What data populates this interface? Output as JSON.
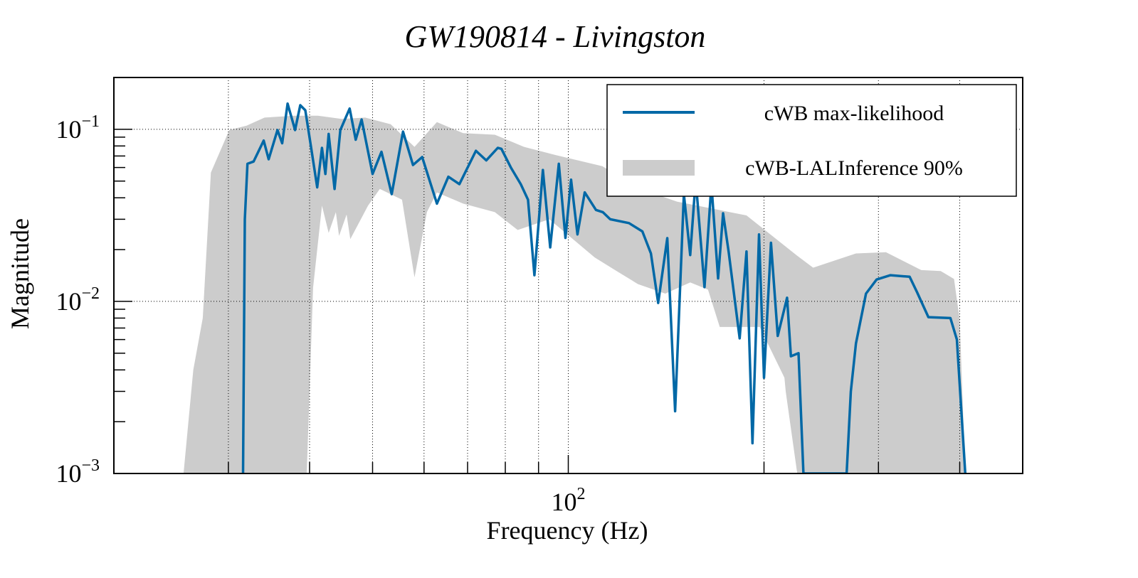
{
  "chart_data": {
    "type": "line",
    "title": "GW190814 - Livingston",
    "xlabel": "Frequency (Hz)",
    "ylabel": "Magnitude",
    "xscale": "log",
    "yscale": "log",
    "xlim": [
      20,
      500
    ],
    "ylim": [
      0.001,
      0.2
    ],
    "grid": true,
    "x_gridlines": [
      30,
      40,
      50,
      60,
      70,
      80,
      90,
      100,
      200,
      300,
      400
    ],
    "y_gridlines": [
      0.1,
      0.01
    ],
    "x_ticks": [
      {
        "value": 100,
        "base": "10",
        "exp": "2"
      }
    ],
    "y_ticks": [
      {
        "value": 0.1,
        "base": "10",
        "exp": "−1"
      },
      {
        "value": 0.01,
        "base": "10",
        "exp": "−2"
      },
      {
        "value": 0.001,
        "base": "10",
        "exp": "−3"
      }
    ],
    "legend": {
      "position": "top-right",
      "entries": [
        {
          "label": "cWB max-likelihood",
          "kind": "line"
        },
        {
          "label": "cWB-LALInference 90%",
          "kind": "band"
        }
      ]
    },
    "colors": {
      "line": "#0068A6",
      "band": "#CCCCCC"
    },
    "series": [
      {
        "name": "cWB max-likelihood",
        "kind": "line",
        "x": [
          31.6,
          31.8,
          32.1,
          32.8,
          34.0,
          34.6,
          35.7,
          36.3,
          37.0,
          38.0,
          38.7,
          39.4,
          40.2,
          41.1,
          41.8,
          42.3,
          42.8,
          43.7,
          44.6,
          46.1,
          47.1,
          48.1,
          50.0,
          51.6,
          53.5,
          55.7,
          57.7,
          59.6,
          62.8,
          65.4,
          68.0,
          72.1,
          74.8,
          77.9,
          78.9,
          81.6,
          84.5,
          86.7,
          88.7,
          91.4,
          93.8,
          96.7,
          99.0,
          101,
          103.3,
          106,
          110.3,
          113,
          116,
          124,
          130,
          134,
          137.5,
          142,
          146,
          150.6,
          154,
          157,
          162,
          166,
          170,
          173,
          176.5,
          183.5,
          188,
          192,
          196.5,
          200,
          205,
          210,
          217,
          220,
          226,
          230,
          268,
          272,
          277,
          287,
          298,
          313,
          335,
          344,
          358,
          387,
          396,
          408
        ],
        "y": [
          0.001,
          0.03,
          0.063,
          0.065,
          0.086,
          0.067,
          0.099,
          0.083,
          0.141,
          0.099,
          0.138,
          0.129,
          0.079,
          0.046,
          0.078,
          0.055,
          0.094,
          0.045,
          0.099,
          0.132,
          0.087,
          0.114,
          0.055,
          0.074,
          0.042,
          0.097,
          0.062,
          0.069,
          0.037,
          0.053,
          0.048,
          0.075,
          0.066,
          0.078,
          0.077,
          0.06,
          0.048,
          0.039,
          0.0142,
          0.058,
          0.0206,
          0.063,
          0.0234,
          0.051,
          0.0245,
          0.043,
          0.034,
          0.033,
          0.03,
          0.0285,
          0.0255,
          0.019,
          0.0098,
          0.0233,
          0.0023,
          0.042,
          0.0186,
          0.051,
          0.0121,
          0.048,
          0.0136,
          0.0325,
          0.0193,
          0.0061,
          0.0195,
          0.0015,
          0.0245,
          0.0036,
          0.0219,
          0.0063,
          0.0105,
          0.0048,
          0.005,
          0.001,
          0.001,
          0.003,
          0.0057,
          0.0111,
          0.0134,
          0.0142,
          0.0139,
          0.0113,
          0.0081,
          0.008,
          0.006,
          0.001
        ]
      },
      {
        "name": "cWB-LALInference 90%",
        "kind": "band",
        "upper": {
          "x": [
            25.6,
            26.5,
            27.4,
            28.2,
            30.1,
            32.0,
            34.1,
            37.9,
            41.2,
            44.8,
            48.7,
            53.3,
            58.0,
            62.8,
            68.9,
            77.1,
            85.5,
            95.4,
            112.8,
            129,
            147,
            188,
            225,
            238,
            277,
            308,
            349,
            374,
            392,
            400,
            408
          ],
          "y": [
            0.001,
            0.004,
            0.008,
            0.056,
            0.099,
            0.105,
            0.117,
            0.12,
            0.12,
            0.115,
            0.117,
            0.107,
            0.079,
            0.11,
            0.095,
            0.093,
            0.079,
            0.071,
            0.061,
            0.045,
            0.038,
            0.0316,
            0.0184,
            0.0157,
            0.019,
            0.0193,
            0.0152,
            0.015,
            0.0135,
            0.0078,
            0.001
          ]
        },
        "lower": {
          "x": [
            25.6,
            39.6,
            40.5,
            41.8,
            42.8,
            43.9,
            44.4,
            45.6,
            46.2,
            49.2,
            51.3,
            55.5,
            58.0,
            60.6,
            62.8,
            68.9,
            77.1,
            83.6,
            93.5,
            109.8,
            118,
            128,
            141,
            154,
            164,
            171,
            197,
            215,
            216,
            225,
            408
          ],
          "y": [
            0.001,
            0.001,
            0.012,
            0.036,
            0.025,
            0.033,
            0.024,
            0.032,
            0.023,
            0.036,
            0.045,
            0.039,
            0.0138,
            0.033,
            0.043,
            0.037,
            0.033,
            0.026,
            0.03,
            0.018,
            0.0152,
            0.0126,
            0.0111,
            0.0129,
            0.0117,
            0.0071,
            0.0071,
            0.0036,
            0.003,
            0.001,
            0.001
          ]
        }
      }
    ]
  }
}
